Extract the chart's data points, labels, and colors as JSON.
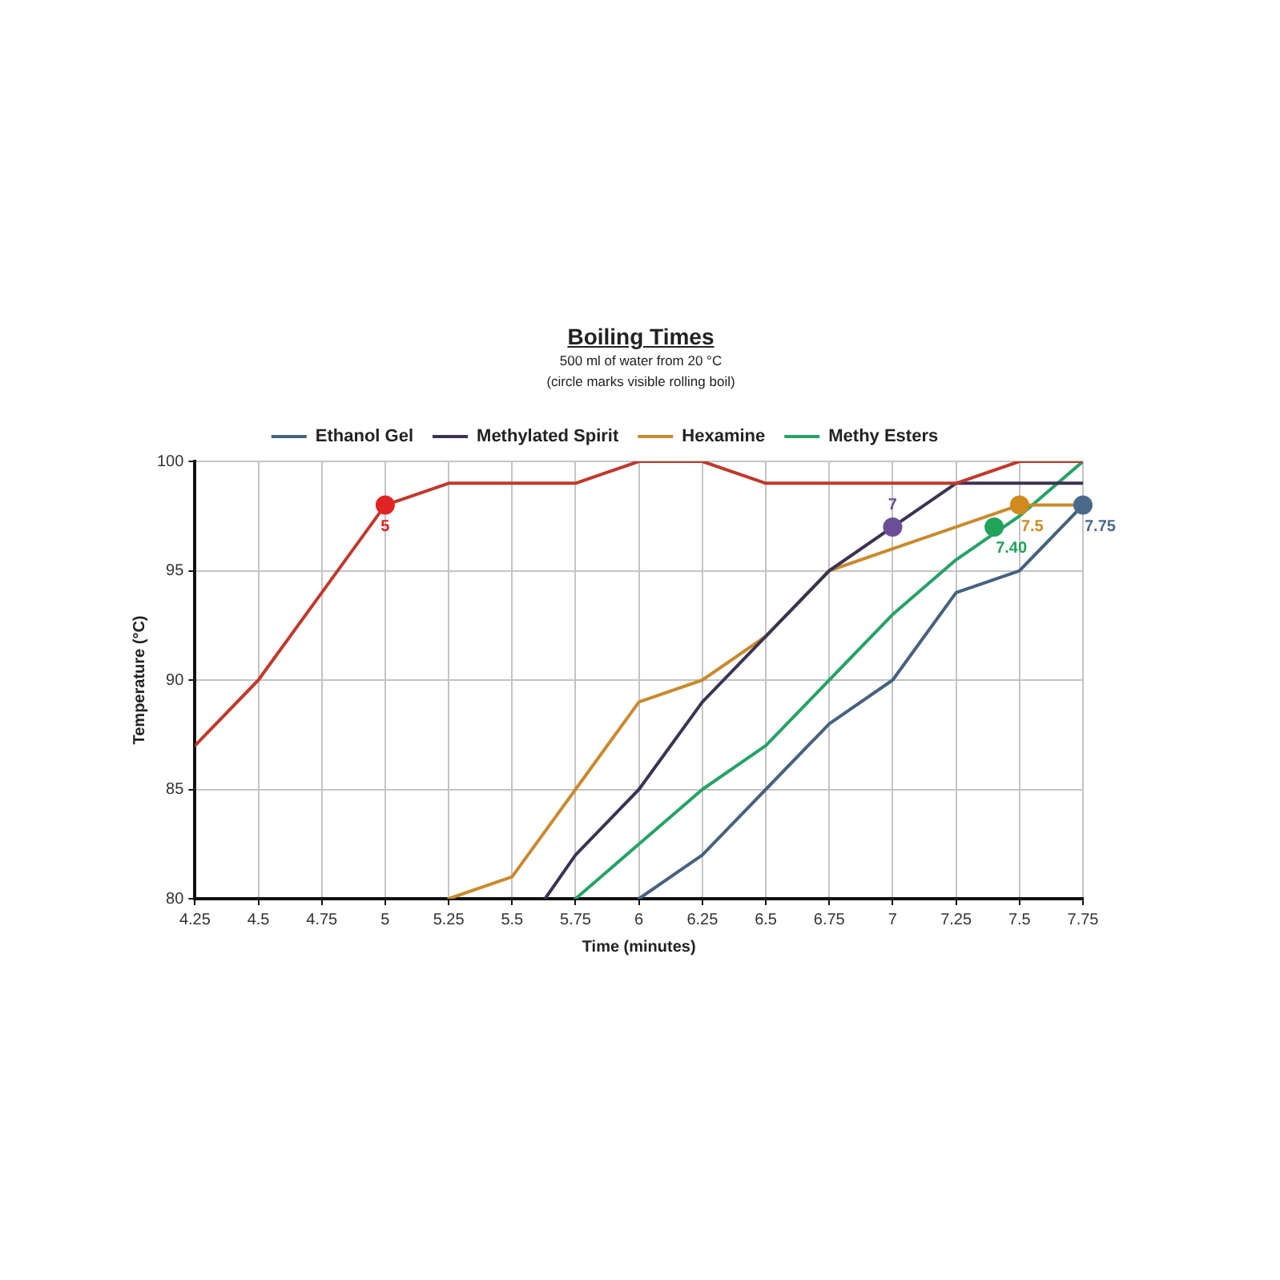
{
  "chart_data": {
    "type": "line",
    "title": "Boiling Times",
    "subtitle": "500 ml of water from 20 °C",
    "xlabel": "Time (minutes)",
    "ylabel": "Temperature (°C)",
    "annotations": [
      "(circle marks visible rolling boil)",
      {
        "text": "5",
        "x": 5,
        "y": 98
      },
      {
        "text": "7",
        "x": 7,
        "y": 97
      },
      {
        "text": "7.40",
        "x": 7.4,
        "y": 97
      },
      {
        "text": "7.5",
        "x": 7.5,
        "y": 98
      },
      {
        "text": "7.75",
        "x": 7.75,
        "y": 98
      }
    ],
    "xlim": [
      4.25,
      7.75
    ],
    "xticks": [
      4.25,
      4.5,
      4.75,
      5,
      5.25,
      5.5,
      5.75,
      6,
      6.25,
      6.5,
      6.75,
      7,
      7.25,
      7.5,
      7.75
    ],
    "ylim": [
      80,
      100
    ],
    "yticks": [
      80,
      85,
      90,
      95,
      100
    ],
    "grid": true,
    "legend": "top",
    "line_style": "solid",
    "x": [
      4.25,
      4.5,
      4.75,
      5,
      5.25,
      5.5,
      5.75,
      6,
      6.25,
      6.5,
      6.75,
      7,
      7.25,
      7.5,
      7.75
    ],
    "series": [
      {
        "color": "#c0392b",
        "values": [
          87,
          90,
          94,
          98,
          99,
          99,
          99,
          100,
          100,
          99,
          99,
          99,
          99,
          100,
          100
        ]
      },
      {
        "name": "Ethanol Gel",
        "color": "#46627f",
        "values": [
          null,
          null,
          null,
          null,
          null,
          null,
          null,
          80,
          82,
          85,
          88,
          90,
          94,
          95,
          98
        ]
      },
      {
        "name": "Methylated Spirit",
        "color": "#3c3352",
        "x": [
          5.63,
          5.75,
          6,
          6.25,
          6.5,
          6.75,
          7,
          7.25,
          7.5,
          7.75
        ],
        "values": [
          80,
          82,
          85,
          89,
          92,
          95,
          97,
          99,
          99,
          99
        ]
      },
      {
        "name": "Hexamine",
        "color": "#c98a2e",
        "values": [
          null,
          null,
          null,
          null,
          80,
          81,
          85,
          89,
          90,
          92,
          95,
          96,
          97,
          98,
          98
        ]
      },
      {
        "name": "Methy Esters",
        "color": "#25a266",
        "values": [
          null,
          null,
          null,
          null,
          null,
          null,
          80,
          82.5,
          85,
          87,
          90,
          93,
          95.5,
          97.5,
          100
        ]
      },
      {
        "type": "scatter",
        "marker": "circle",
        "x": [
          5,
          7,
          7.4,
          7.5,
          7.75
        ],
        "values": [
          98,
          97,
          97,
          98,
          98
        ],
        "colors": [
          "#e02424",
          "#6b4f96",
          "#22a35a",
          "#d08a1e",
          "#4b6a8a"
        ]
      }
    ]
  }
}
